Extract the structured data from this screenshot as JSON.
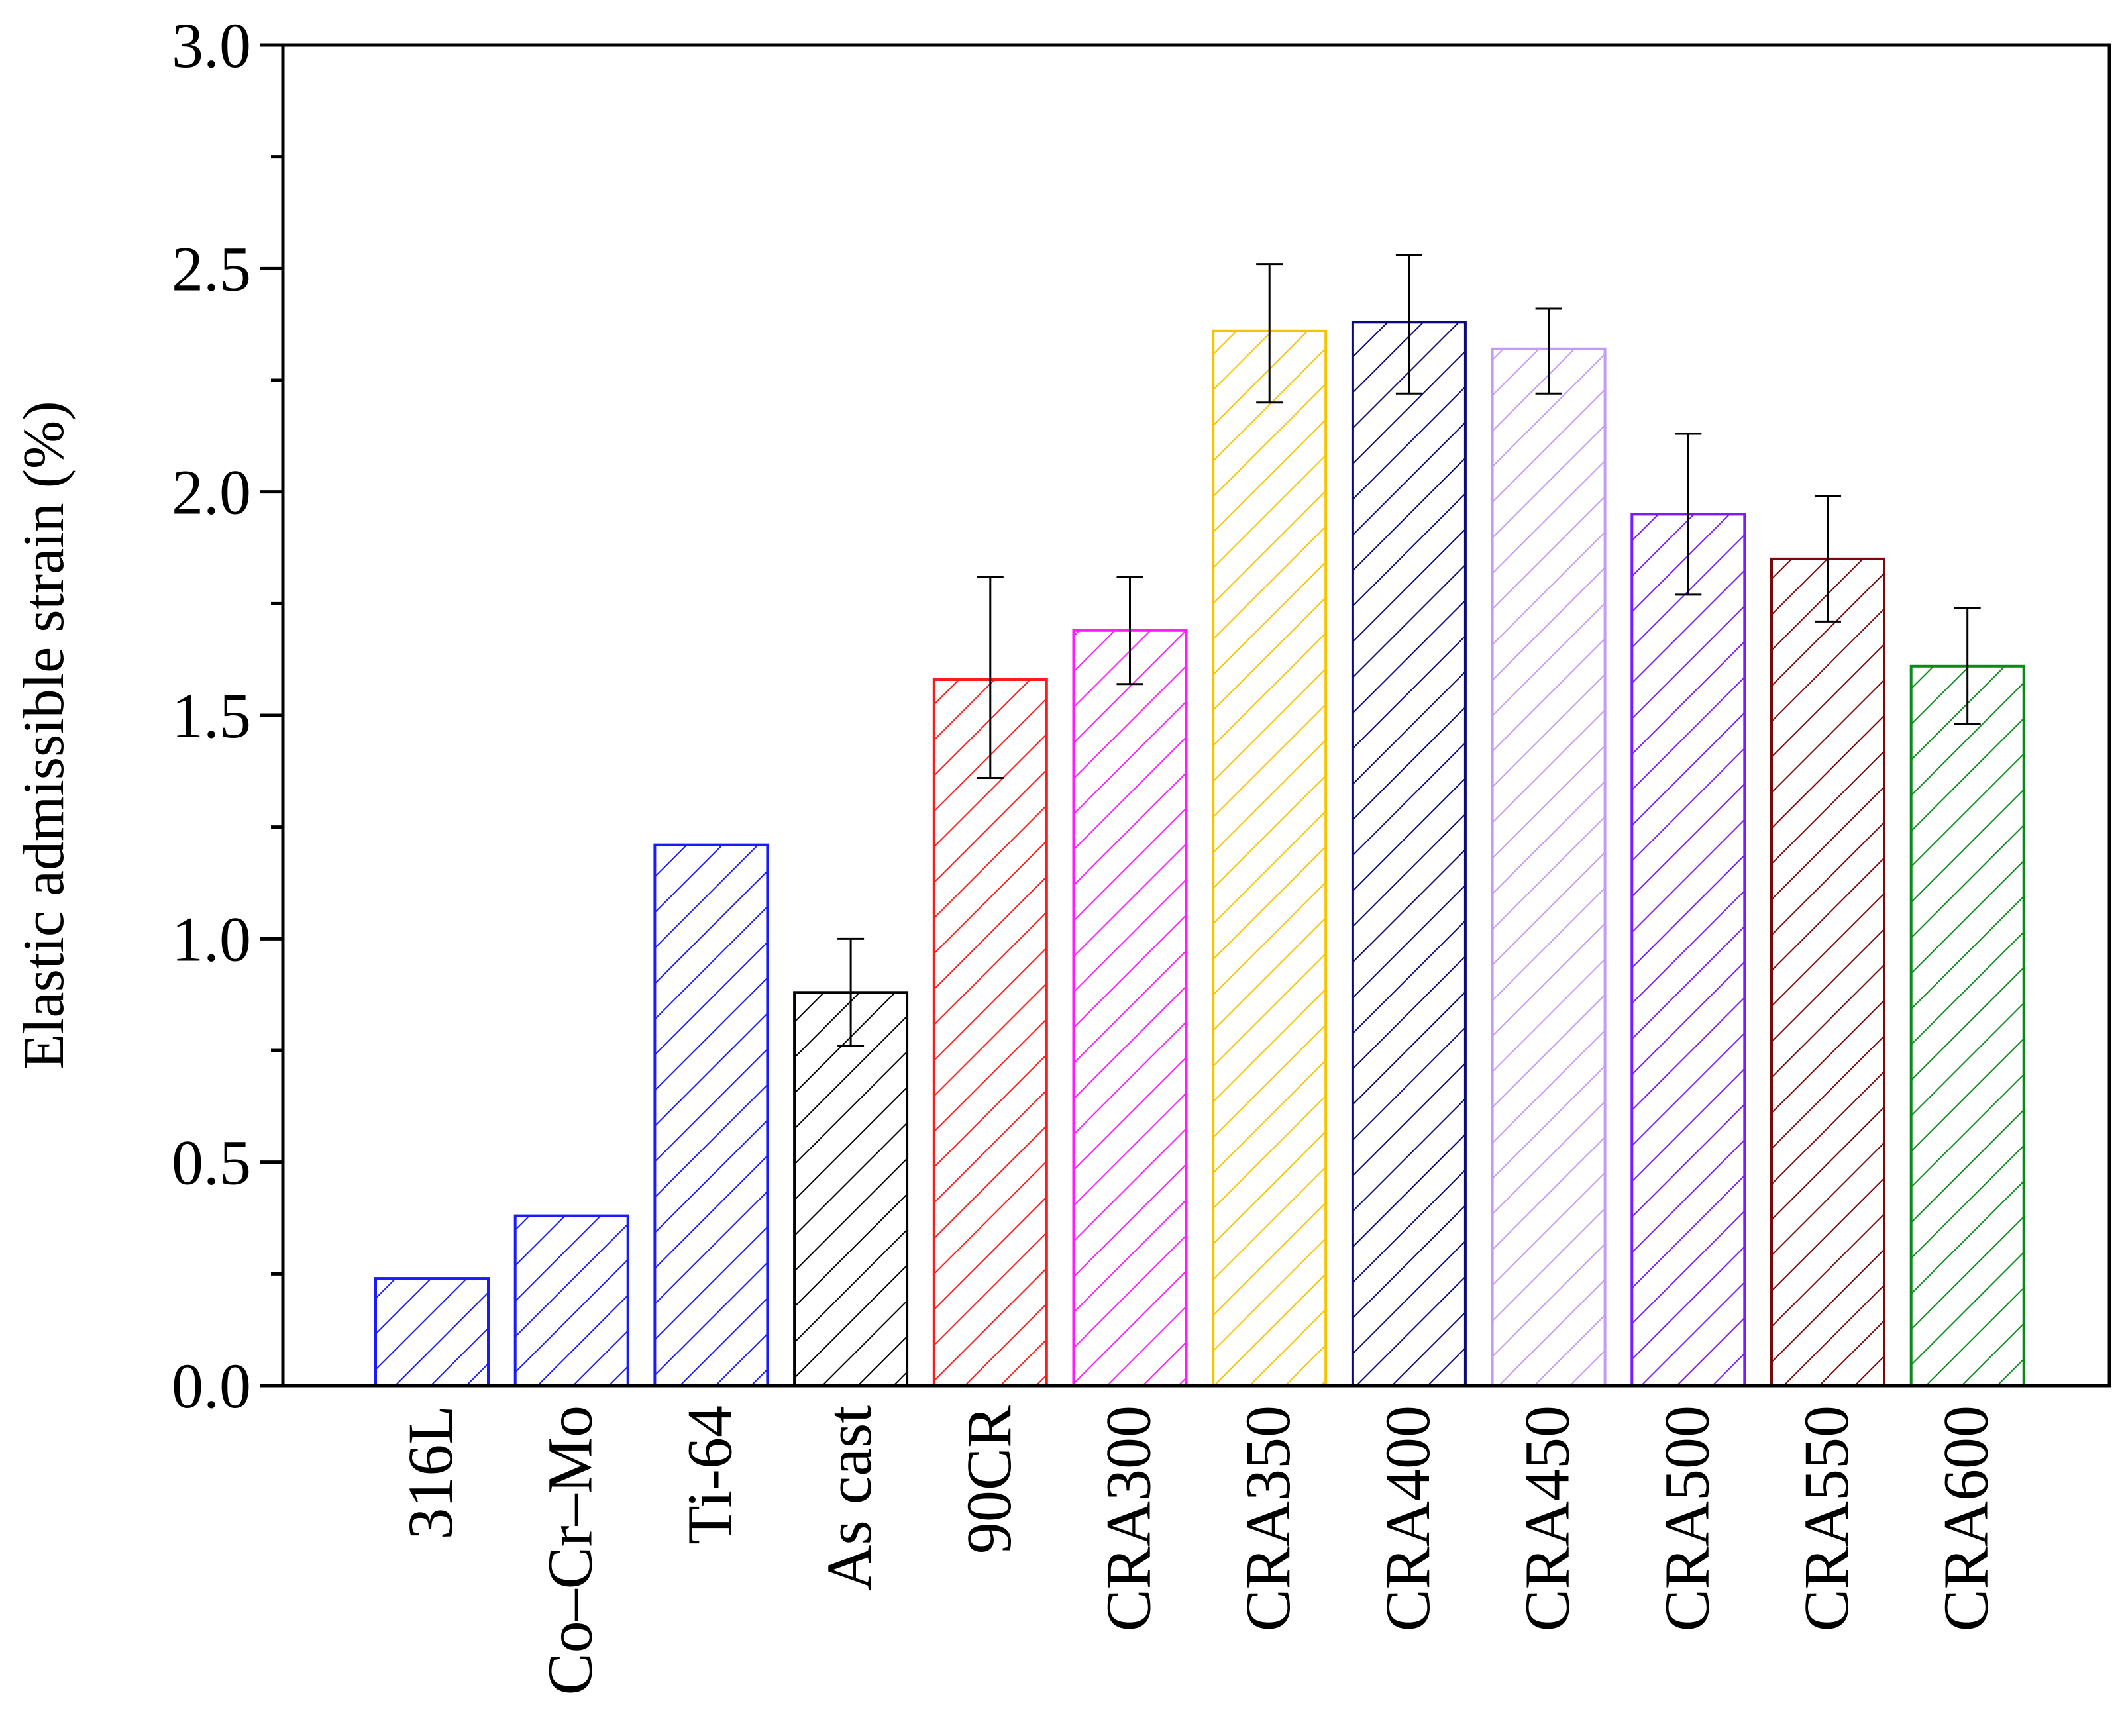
{
  "chart_data": {
    "type": "bar",
    "title": "",
    "xlabel": "",
    "ylabel": "Elastic admissible strain (%)",
    "ylim": [
      0,
      3.0
    ],
    "yticks": [
      "0.0",
      "0.5",
      "1.0",
      "1.5",
      "2.0",
      "2.5",
      "3.0"
    ],
    "categories": [
      "316L",
      "Co–Cr–Mo",
      "Ti-64",
      "As cast",
      "90CR",
      "CRA300",
      "CRA350",
      "CRA400",
      "CRA450",
      "CRA500",
      "CRA550",
      "CRA600"
    ],
    "values": [
      0.24,
      0.38,
      1.21,
      0.88,
      1.58,
      1.69,
      2.36,
      2.38,
      2.32,
      1.95,
      1.85,
      1.61
    ],
    "error_low": [
      null,
      null,
      null,
      0.76,
      1.36,
      1.57,
      2.2,
      2.22,
      2.22,
      1.77,
      1.71,
      1.48
    ],
    "error_high": [
      null,
      null,
      null,
      1.0,
      1.81,
      1.81,
      2.51,
      2.53,
      2.41,
      2.13,
      1.99,
      1.74
    ],
    "colors": [
      "#1a1aff",
      "#1a1aff",
      "#1a1aff",
      "#000000",
      "#ff1a1a",
      "#ff1aff",
      "#f5c400",
      "#0a0a78",
      "#c39bf5",
      "#7a1aff",
      "#7a0a0a",
      "#0a8a1a"
    ],
    "fill": "diagonal-hatch",
    "grid": false,
    "legend": "none"
  }
}
